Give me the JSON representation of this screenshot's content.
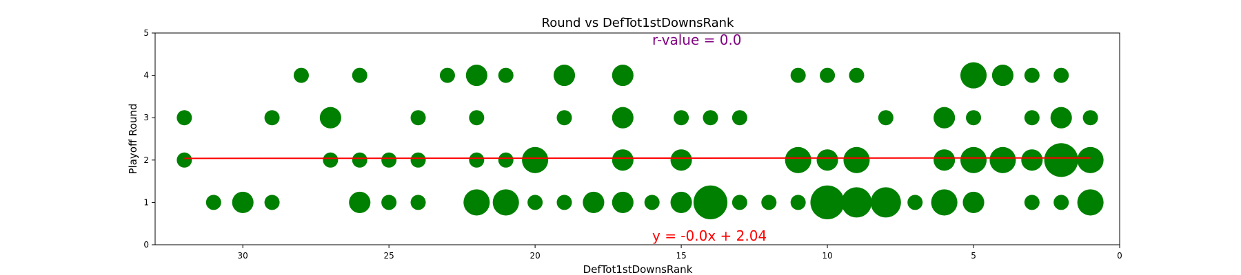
{
  "chart_data": {
    "type": "scatter",
    "title": "Round vs DefTot1stDownsRank",
    "xlabel": "DefTot1stDownsRank",
    "ylabel": "Playoff Round",
    "xlim": [
      33,
      0
    ],
    "ylim": [
      0,
      5
    ],
    "x_ticks": [
      30,
      25,
      20,
      15,
      10,
      5,
      0
    ],
    "y_ticks": [
      0,
      1,
      2,
      3,
      4,
      5
    ],
    "x_inverted": true,
    "grid": false,
    "point_color": "#008000",
    "line_color": "#ff0000",
    "r_color": "#800080",
    "annotations": {
      "r_value": "r-value = 0.0",
      "equation": "y = -0.0x + 2.04"
    },
    "regression": {
      "slope": -0.0,
      "intercept": 2.04,
      "x_range": [
        32,
        1
      ]
    },
    "points": [
      {
        "x": 28,
        "y": 4,
        "count": 1
      },
      {
        "x": 26,
        "y": 4,
        "count": 1
      },
      {
        "x": 23,
        "y": 4,
        "count": 1
      },
      {
        "x": 22,
        "y": 4,
        "count": 2
      },
      {
        "x": 21,
        "y": 4,
        "count": 1
      },
      {
        "x": 19,
        "y": 4,
        "count": 2
      },
      {
        "x": 17,
        "y": 4,
        "count": 2
      },
      {
        "x": 11,
        "y": 4,
        "count": 1
      },
      {
        "x": 10,
        "y": 4,
        "count": 1
      },
      {
        "x": 9,
        "y": 4,
        "count": 1
      },
      {
        "x": 5,
        "y": 4,
        "count": 3
      },
      {
        "x": 4,
        "y": 4,
        "count": 2
      },
      {
        "x": 3,
        "y": 4,
        "count": 1
      },
      {
        "x": 2,
        "y": 4,
        "count": 1
      },
      {
        "x": 32,
        "y": 3,
        "count": 1
      },
      {
        "x": 29,
        "y": 3,
        "count": 1
      },
      {
        "x": 27,
        "y": 3,
        "count": 2
      },
      {
        "x": 24,
        "y": 3,
        "count": 1
      },
      {
        "x": 22,
        "y": 3,
        "count": 1
      },
      {
        "x": 19,
        "y": 3,
        "count": 1
      },
      {
        "x": 17,
        "y": 3,
        "count": 2
      },
      {
        "x": 15,
        "y": 3,
        "count": 1
      },
      {
        "x": 14,
        "y": 3,
        "count": 1
      },
      {
        "x": 13,
        "y": 3,
        "count": 1
      },
      {
        "x": 8,
        "y": 3,
        "count": 1
      },
      {
        "x": 6,
        "y": 3,
        "count": 2
      },
      {
        "x": 5,
        "y": 3,
        "count": 1
      },
      {
        "x": 3,
        "y": 3,
        "count": 1
      },
      {
        "x": 2,
        "y": 3,
        "count": 2
      },
      {
        "x": 1,
        "y": 3,
        "count": 1
      },
      {
        "x": 32,
        "y": 2,
        "count": 1
      },
      {
        "x": 27,
        "y": 2,
        "count": 1
      },
      {
        "x": 26,
        "y": 2,
        "count": 1
      },
      {
        "x": 25,
        "y": 2,
        "count": 1
      },
      {
        "x": 24,
        "y": 2,
        "count": 1
      },
      {
        "x": 22,
        "y": 2,
        "count": 1
      },
      {
        "x": 21,
        "y": 2,
        "count": 1
      },
      {
        "x": 20,
        "y": 2,
        "count": 3
      },
      {
        "x": 17,
        "y": 2,
        "count": 2
      },
      {
        "x": 15,
        "y": 2,
        "count": 2
      },
      {
        "x": 11,
        "y": 2,
        "count": 3
      },
      {
        "x": 10,
        "y": 2,
        "count": 2
      },
      {
        "x": 9,
        "y": 2,
        "count": 3
      },
      {
        "x": 6,
        "y": 2,
        "count": 2
      },
      {
        "x": 5,
        "y": 2,
        "count": 3
      },
      {
        "x": 4,
        "y": 2,
        "count": 3
      },
      {
        "x": 3,
        "y": 2,
        "count": 2
      },
      {
        "x": 2,
        "y": 2,
        "count": 5
      },
      {
        "x": 1,
        "y": 2,
        "count": 3
      },
      {
        "x": 31,
        "y": 1,
        "count": 1
      },
      {
        "x": 30,
        "y": 1,
        "count": 2
      },
      {
        "x": 29,
        "y": 1,
        "count": 1
      },
      {
        "x": 26,
        "y": 1,
        "count": 2
      },
      {
        "x": 25,
        "y": 1,
        "count": 1
      },
      {
        "x": 24,
        "y": 1,
        "count": 1
      },
      {
        "x": 22,
        "y": 1,
        "count": 3
      },
      {
        "x": 21,
        "y": 1,
        "count": 3
      },
      {
        "x": 20,
        "y": 1,
        "count": 1
      },
      {
        "x": 19,
        "y": 1,
        "count": 1
      },
      {
        "x": 18,
        "y": 1,
        "count": 2
      },
      {
        "x": 17,
        "y": 1,
        "count": 2
      },
      {
        "x": 16,
        "y": 1,
        "count": 1
      },
      {
        "x": 15,
        "y": 1,
        "count": 2
      },
      {
        "x": 14,
        "y": 1,
        "count": 5
      },
      {
        "x": 13,
        "y": 1,
        "count": 1
      },
      {
        "x": 12,
        "y": 1,
        "count": 1
      },
      {
        "x": 11,
        "y": 1,
        "count": 1
      },
      {
        "x": 10,
        "y": 1,
        "count": 5
      },
      {
        "x": 9,
        "y": 1,
        "count": 4
      },
      {
        "x": 8,
        "y": 1,
        "count": 4
      },
      {
        "x": 7,
        "y": 1,
        "count": 1
      },
      {
        "x": 6,
        "y": 1,
        "count": 3
      },
      {
        "x": 5,
        "y": 1,
        "count": 2
      },
      {
        "x": 3,
        "y": 1,
        "count": 1
      },
      {
        "x": 2,
        "y": 1,
        "count": 1
      },
      {
        "x": 1,
        "y": 1,
        "count": 3
      }
    ]
  }
}
